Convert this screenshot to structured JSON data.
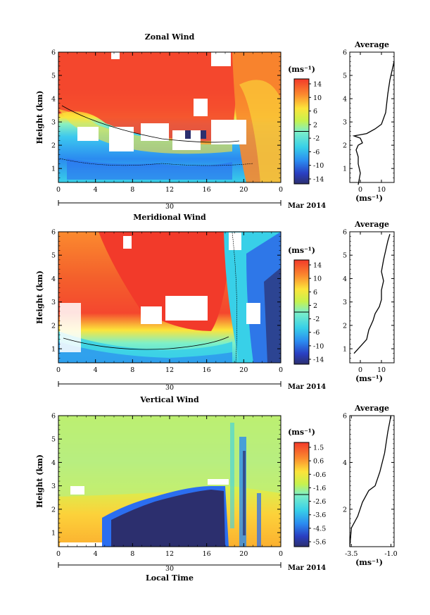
{
  "chart_data": [
    {
      "type": "heatmap",
      "title": "Zonal Wind",
      "xlabel": "",
      "ylabel": "Height (km)",
      "x_ticks": [
        "0",
        "4",
        "8",
        "12",
        "16",
        "20",
        "0"
      ],
      "y_ticks": [
        "1",
        "2",
        "3",
        "4",
        "5",
        "6"
      ],
      "xlim": [
        0,
        24
      ],
      "ylim": [
        0.4,
        6
      ],
      "date_day": "30",
      "date_month": "Mar 2014",
      "colorbar": {
        "unit": "(ms⁻¹)",
        "ticks": [
          "14",
          "10",
          "6",
          "2",
          "-2",
          "-6",
          "-10",
          "-14"
        ],
        "range": [
          -16,
          16
        ]
      },
      "profile": {
        "title": "Average",
        "xlabel": "(ms⁻¹)",
        "x_ticks": [
          "0",
          "10"
        ],
        "y_ticks": [
          "1",
          "2",
          "3",
          "4",
          "5",
          "6"
        ],
        "xlim": [
          -5,
          16
        ],
        "points": [
          [
            -1,
            0.3
          ],
          [
            0,
            0.8
          ],
          [
            -1,
            1.2
          ],
          [
            -1,
            1.5
          ],
          [
            -2,
            1.8
          ],
          [
            -1,
            2.0
          ],
          [
            1,
            2.1
          ],
          [
            0,
            2.3
          ],
          [
            -3,
            2.4
          ],
          [
            3,
            2.5
          ],
          [
            7,
            2.7
          ],
          [
            10,
            2.9
          ],
          [
            12,
            3.4
          ],
          [
            13,
            4.2
          ],
          [
            14,
            4.8
          ],
          [
            15,
            5.2
          ],
          [
            16,
            5.6
          ]
        ]
      }
    },
    {
      "type": "heatmap",
      "title": "Meridional Wind",
      "xlabel": "",
      "ylabel": "Height (km)",
      "x_ticks": [
        "0",
        "4",
        "8",
        "12",
        "16",
        "20",
        "0"
      ],
      "y_ticks": [
        "1",
        "2",
        "3",
        "4",
        "5",
        "6"
      ],
      "xlim": [
        0,
        24
      ],
      "ylim": [
        0.4,
        6
      ],
      "date_day": "30",
      "date_month": "Mar 2014",
      "colorbar": {
        "unit": "(ms⁻¹)",
        "ticks": [
          "14",
          "10",
          "6",
          "2",
          "-2",
          "-6",
          "-10",
          "-14"
        ],
        "range": [
          -16,
          16
        ]
      },
      "profile": {
        "title": "Average",
        "xlabel": "(ms⁻¹)",
        "x_ticks": [
          "0",
          "10"
        ],
        "y_ticks": [
          "1",
          "2",
          "3",
          "4",
          "5",
          "6"
        ],
        "xlim": [
          -5,
          16
        ],
        "points": [
          [
            -3,
            0.8
          ],
          [
            0,
            1.1
          ],
          [
            3,
            1.4
          ],
          [
            4,
            1.8
          ],
          [
            6,
            2.2
          ],
          [
            7,
            2.5
          ],
          [
            9,
            2.8
          ],
          [
            10,
            3.1
          ],
          [
            10,
            3.5
          ],
          [
            11,
            3.9
          ],
          [
            10,
            4.3
          ],
          [
            11,
            4.8
          ],
          [
            12,
            5.2
          ],
          [
            13,
            5.6
          ],
          [
            14,
            5.9
          ]
        ]
      }
    },
    {
      "type": "heatmap",
      "title": "Vertical Wind",
      "xlabel": "Local Time",
      "ylabel": "Height (km)",
      "x_ticks": [
        "0",
        "4",
        "8",
        "12",
        "16",
        "20",
        "0"
      ],
      "y_ticks": [
        "1",
        "2",
        "3",
        "4",
        "5",
        "6"
      ],
      "xlim": [
        0,
        24
      ],
      "ylim": [
        0.4,
        6
      ],
      "date_day": "30",
      "date_month": "Mar 2014",
      "colorbar": {
        "unit": "(ms⁻¹)",
        "ticks": [
          "1.5",
          "0.6",
          "-0.6",
          "-1.6",
          "-2.6",
          "-3.6",
          "-4.5",
          "-5.6"
        ],
        "range": [
          -6,
          2
        ]
      },
      "profile": {
        "title": "Average",
        "xlabel": "(ms⁻¹)",
        "x_ticks": [
          "-3.5",
          "-1.0"
        ],
        "y_ticks": [
          "2",
          "4",
          "6"
        ],
        "xlim": [
          -3.6,
          -0.8
        ],
        "points": [
          [
            -3.6,
            0.4
          ],
          [
            -3.5,
            1.2
          ],
          [
            -3.1,
            1.7
          ],
          [
            -2.8,
            2.3
          ],
          [
            -2.4,
            2.8
          ],
          [
            -2.0,
            3.0
          ],
          [
            -1.7,
            3.6
          ],
          [
            -1.4,
            4.4
          ],
          [
            -1.2,
            5.3
          ],
          [
            -1.0,
            6.0
          ]
        ]
      }
    }
  ]
}
